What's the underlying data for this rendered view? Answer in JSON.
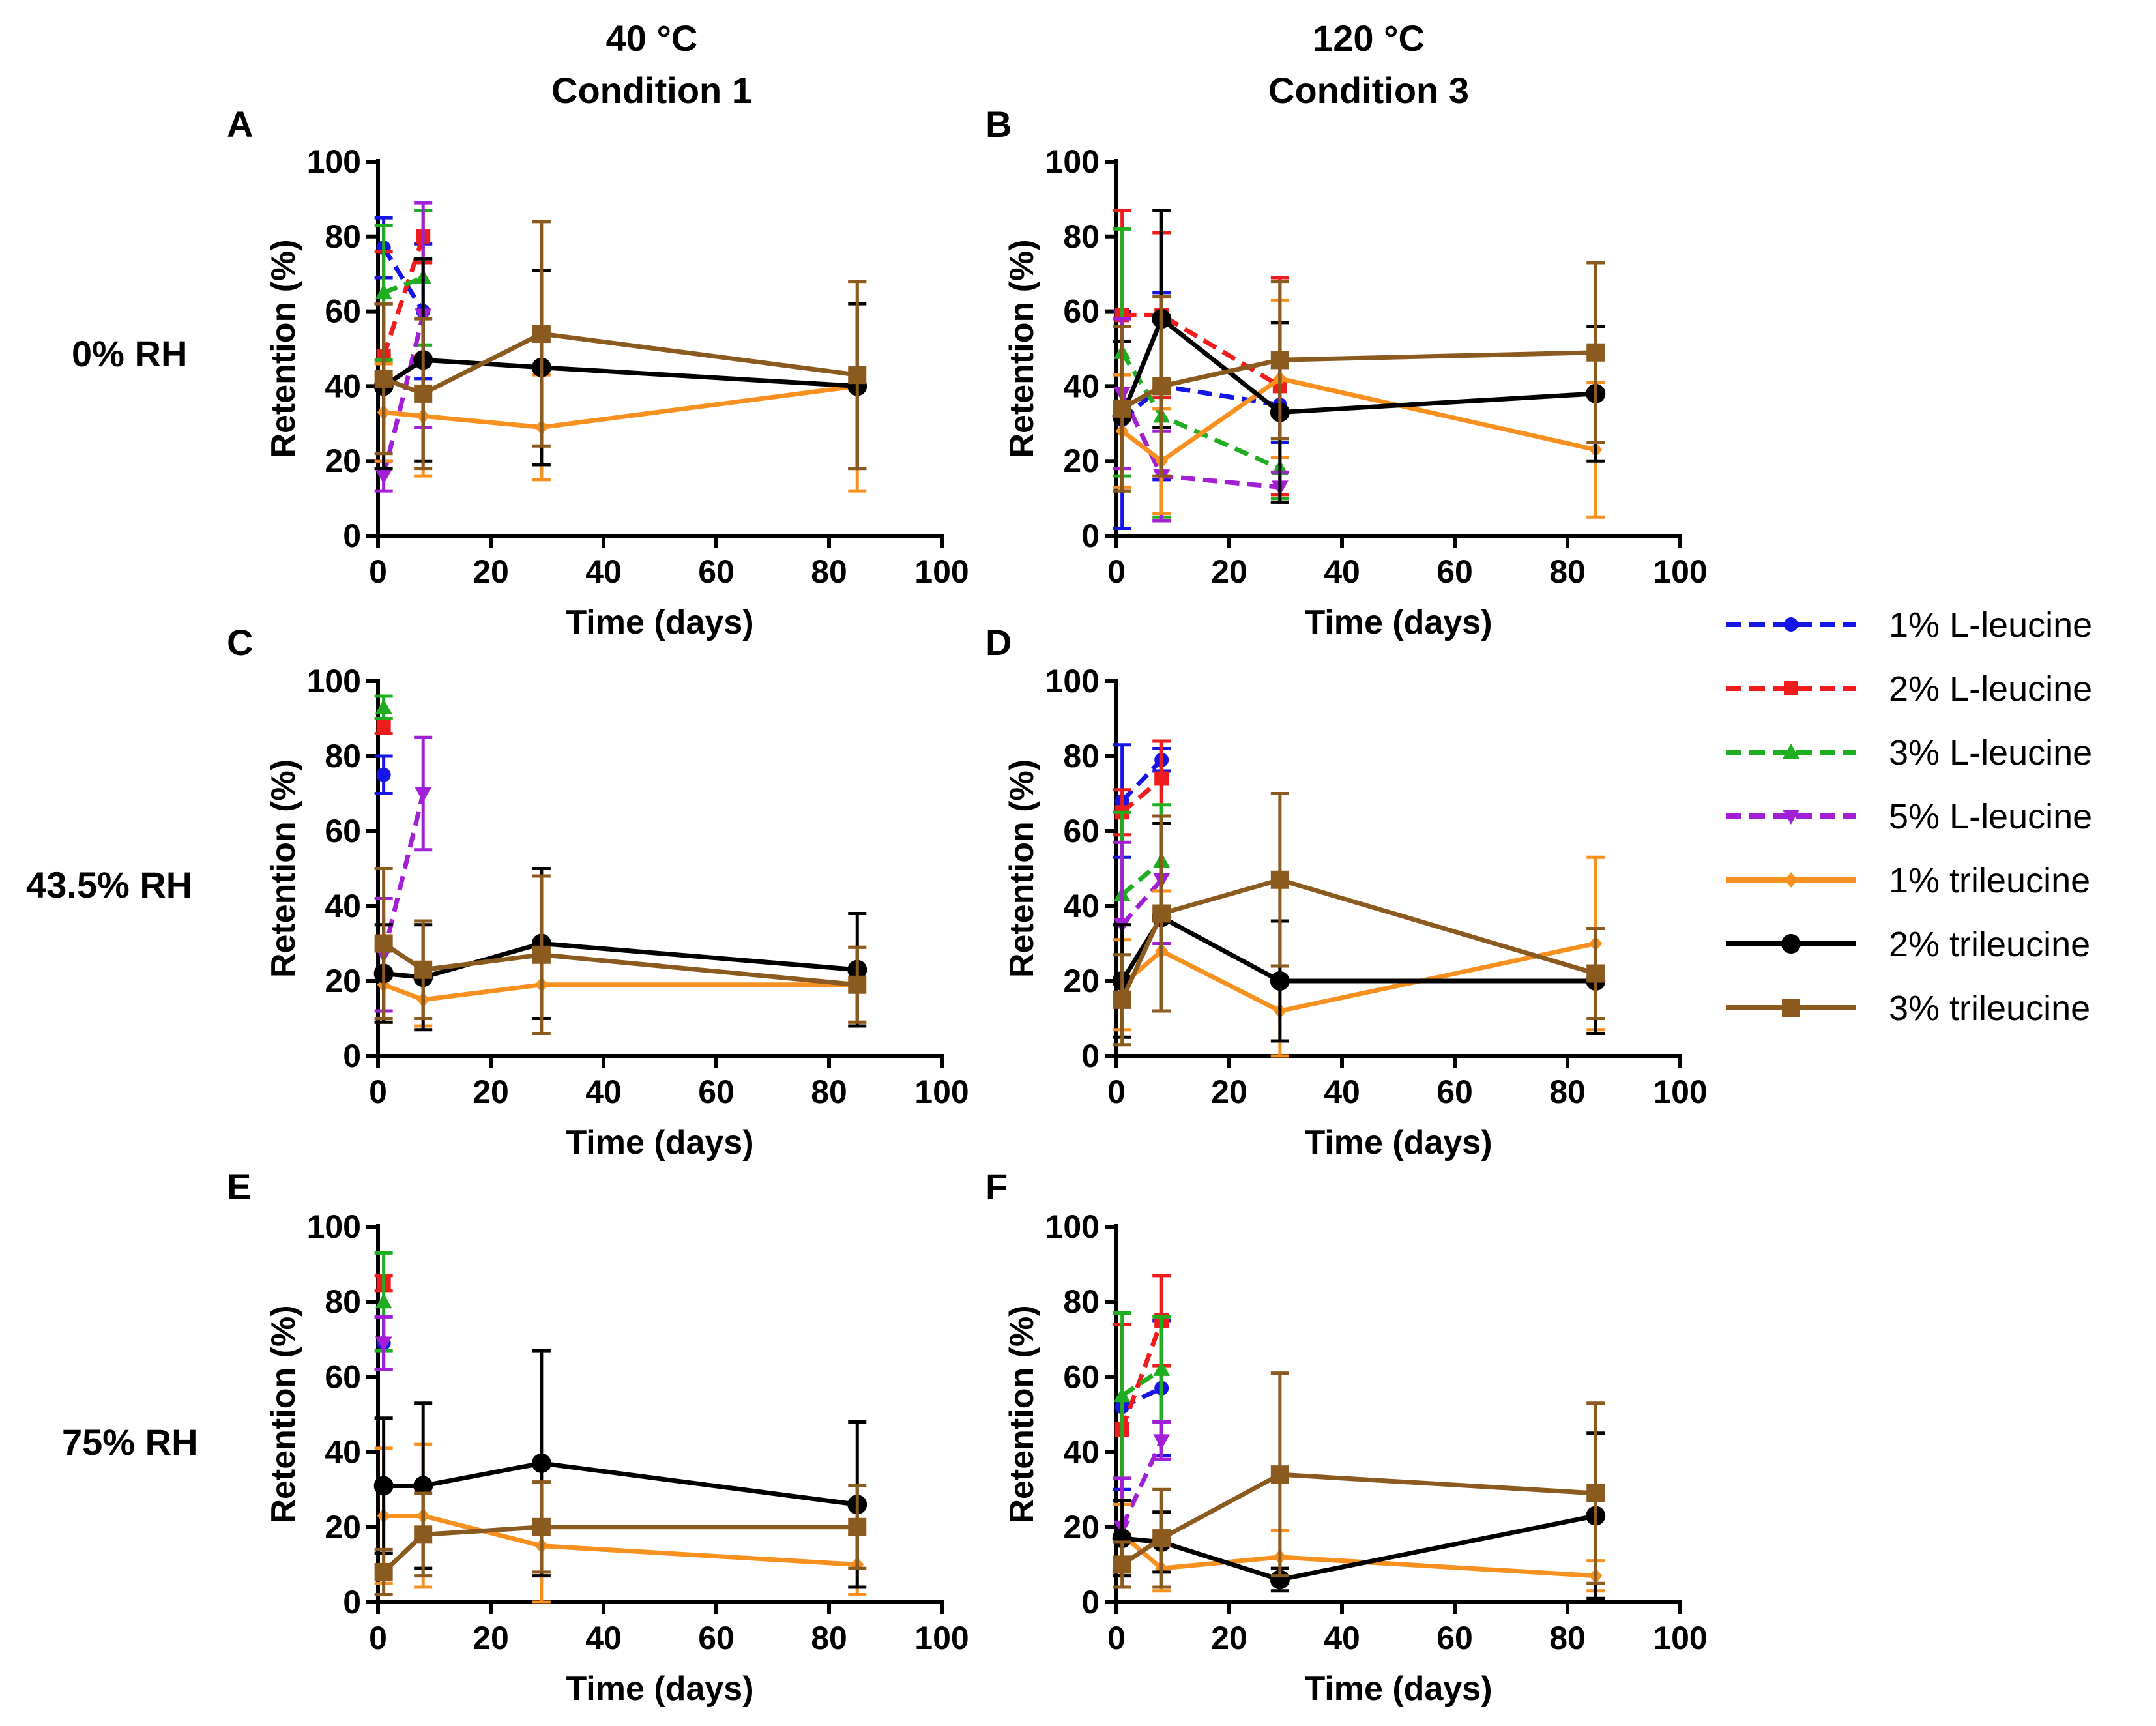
{
  "columns": [
    "40 °C",
    "120 °C"
  ],
  "column_conditions": [
    "Condition 1",
    "Condition 3"
  ],
  "rows": [
    "0% RH",
    "43.5% RH",
    "75% RH"
  ],
  "series_meta": [
    {
      "name": "1% L-leucine",
      "color": "#1515e6",
      "dash": true,
      "marker": "circle"
    },
    {
      "name": "2% L-leucine",
      "color": "#ee1c1c",
      "dash": true,
      "marker": "square"
    },
    {
      "name": "3% L-leucine",
      "color": "#1fae1f",
      "dash": true,
      "marker": "triangle-up"
    },
    {
      "name": "5% L-leucine",
      "color": "#a21fd6",
      "dash": true,
      "marker": "triangle-down"
    },
    {
      "name": "1% trileucine",
      "color": "#f7901e",
      "dash": false,
      "marker": "diamond"
    },
    {
      "name": "2% trileucine",
      "color": "#000000",
      "dash": false,
      "marker": "circle-big"
    },
    {
      "name": "3% trileucine",
      "color": "#8b5a1e",
      "dash": false,
      "marker": "square-big"
    }
  ],
  "chart_data": [
    {
      "panel": "A",
      "type": "line",
      "xlabel": "Time (days)",
      "ylabel": "Retention (%)",
      "xlim": [
        0,
        100
      ],
      "ylim": [
        0,
        100
      ],
      "xticks": [
        "0",
        "20",
        "40",
        "60",
        "80",
        "100"
      ],
      "yticks": [
        "0",
        "20",
        "40",
        "60",
        "80",
        "100"
      ],
      "series": [
        {
          "name": "1% L-leucine",
          "x": [
            1,
            8
          ],
          "y": [
            77,
            60
          ],
          "err": [
            8,
            18
          ]
        },
        {
          "name": "2% L-leucine",
          "x": [
            1,
            8
          ],
          "y": [
            48,
            80
          ],
          "err": [
            28,
            7
          ]
        },
        {
          "name": "3% L-leucine",
          "x": [
            1,
            8
          ],
          "y": [
            65,
            69
          ],
          "err": [
            18,
            18
          ]
        },
        {
          "name": "5% L-leucine",
          "x": [
            1,
            8
          ],
          "y": [
            16,
            59
          ],
          "err": [
            4,
            30
          ]
        },
        {
          "name": "1% trileucine",
          "x": [
            1,
            8,
            29,
            85
          ],
          "y": [
            33,
            32,
            29,
            40
          ],
          "err": [
            13,
            16,
            14,
            28
          ]
        },
        {
          "name": "2% trileucine",
          "x": [
            1,
            8,
            29,
            85
          ],
          "y": [
            40,
            47,
            45,
            40
          ],
          "err": [
            22,
            27,
            26,
            22
          ]
        },
        {
          "name": "3% trileucine",
          "x": [
            1,
            8,
            29,
            85
          ],
          "y": [
            42,
            38,
            54,
            43
          ],
          "err": [
            20,
            20,
            30,
            25
          ]
        }
      ]
    },
    {
      "panel": "B",
      "type": "line",
      "xlabel": "Time (days)",
      "ylabel": "Retention (%)",
      "xlim": [
        0,
        100
      ],
      "ylim": [
        0,
        100
      ],
      "xticks": [
        "0",
        "20",
        "40",
        "60",
        "80",
        "100"
      ],
      "yticks": [
        "0",
        "20",
        "40",
        "60",
        "80",
        "100"
      ],
      "series": [
        {
          "name": "1% L-leucine",
          "x": [
            1,
            8,
            29
          ],
          "y": [
            31,
            40,
            35
          ],
          "err": [
            29,
            25,
            10
          ]
        },
        {
          "name": "2% L-leucine",
          "x": [
            1,
            8,
            29
          ],
          "y": [
            59,
            59,
            40
          ],
          "err": [
            28,
            22,
            29
          ]
        },
        {
          "name": "3% L-leucine",
          "x": [
            1,
            8,
            29
          ],
          "y": [
            49,
            32,
            18
          ],
          "err": [
            33,
            27,
            8
          ]
        },
        {
          "name": "5% L-leucine",
          "x": [
            1,
            8,
            29
          ],
          "y": [
            38,
            16,
            13
          ],
          "err": [
            20,
            12,
            4
          ]
        },
        {
          "name": "1% trileucine",
          "x": [
            1,
            8,
            29,
            85
          ],
          "y": [
            28,
            20,
            42,
            23
          ],
          "err": [
            15,
            14,
            21,
            18
          ]
        },
        {
          "name": "2% trileucine",
          "x": [
            1,
            8,
            29,
            85
          ],
          "y": [
            32,
            58,
            33,
            38
          ],
          "err": [
            20,
            29,
            24,
            18
          ]
        },
        {
          "name": "3% trileucine",
          "x": [
            1,
            8,
            29,
            85
          ],
          "y": [
            34,
            40,
            47,
            49
          ],
          "err": [
            22,
            24,
            21,
            24
          ]
        }
      ]
    },
    {
      "panel": "C",
      "type": "line",
      "xlabel": "Time (days)",
      "ylabel": "Retention (%)",
      "xlim": [
        0,
        100
      ],
      "ylim": [
        0,
        100
      ],
      "xticks": [
        "0",
        "20",
        "40",
        "60",
        "80",
        "100"
      ],
      "yticks": [
        "0",
        "20",
        "40",
        "60",
        "80",
        "100"
      ],
      "series": [
        {
          "name": "1% L-leucine",
          "x": [
            1
          ],
          "y": [
            75
          ],
          "err": [
            5
          ]
        },
        {
          "name": "2% L-leucine",
          "x": [
            1
          ],
          "y": [
            88
          ],
          "err": [
            2
          ]
        },
        {
          "name": "3% L-leucine",
          "x": [
            1
          ],
          "y": [
            93
          ],
          "err": [
            3
          ]
        },
        {
          "name": "5% L-leucine",
          "x": [
            1,
            8
          ],
          "y": [
            27,
            70
          ],
          "err": [
            15,
            15
          ]
        },
        {
          "name": "1% trileucine",
          "x": [
            1,
            8,
            29,
            85
          ],
          "y": [
            19,
            15,
            19,
            19
          ],
          "err": [
            10,
            7,
            9,
            10
          ]
        },
        {
          "name": "2% trileucine",
          "x": [
            1,
            8,
            29,
            85
          ],
          "y": [
            22,
            21,
            30,
            23
          ],
          "err": [
            13,
            14,
            20,
            15
          ]
        },
        {
          "name": "3% trileucine",
          "x": [
            1,
            8,
            29,
            85
          ],
          "y": [
            30,
            23,
            27,
            19
          ],
          "err": [
            20,
            13,
            21,
            10
          ]
        }
      ]
    },
    {
      "panel": "D",
      "type": "line",
      "xlabel": "Time (days)",
      "ylabel": "Retention (%)",
      "xlim": [
        0,
        100
      ],
      "ylim": [
        0,
        100
      ],
      "xticks": [
        "0",
        "20",
        "40",
        "60",
        "80",
        "100"
      ],
      "yticks": [
        "0",
        "20",
        "40",
        "60",
        "80",
        "100"
      ],
      "series": [
        {
          "name": "1% L-leucine",
          "x": [
            1,
            8
          ],
          "y": [
            68,
            79
          ],
          "err": [
            15,
            3
          ]
        },
        {
          "name": "2% L-leucine",
          "x": [
            1,
            8
          ],
          "y": [
            65,
            74
          ],
          "err": [
            6,
            10
          ]
        },
        {
          "name": "3% L-leucine",
          "x": [
            1,
            8
          ],
          "y": [
            43,
            52
          ],
          "err": [
            22,
            15
          ]
        },
        {
          "name": "5% L-leucine",
          "x": [
            1,
            8
          ],
          "y": [
            35,
            47
          ],
          "err": [
            22,
            17
          ]
        },
        {
          "name": "1% trileucine",
          "x": [
            1,
            8,
            29,
            85
          ],
          "y": [
            19,
            28,
            12,
            30
          ],
          "err": [
            12,
            16,
            12,
            23
          ]
        },
        {
          "name": "2% trileucine",
          "x": [
            1,
            8,
            29,
            85
          ],
          "y": [
            20,
            37,
            20,
            20
          ],
          "err": [
            15,
            25,
            16,
            14
          ]
        },
        {
          "name": "3% trileucine",
          "x": [
            1,
            8,
            29,
            85
          ],
          "y": [
            15,
            38,
            47,
            22
          ],
          "err": [
            12,
            26,
            23,
            12
          ]
        }
      ]
    },
    {
      "panel": "E",
      "type": "line",
      "xlabel": "Time (days)",
      "ylabel": "Retention (%)",
      "xlim": [
        0,
        100
      ],
      "ylim": [
        0,
        100
      ],
      "xticks": [
        "0",
        "20",
        "40",
        "60",
        "80",
        "100"
      ],
      "yticks": [
        "0",
        "20",
        "40",
        "60",
        "80",
        "100"
      ],
      "series": [
        {
          "name": "1% L-leucine",
          "x": [
            1
          ],
          "y": [
            69
          ],
          "err": [
            7
          ]
        },
        {
          "name": "2% L-leucine",
          "x": [
            1
          ],
          "y": [
            85
          ],
          "err": [
            2
          ]
        },
        {
          "name": "3% L-leucine",
          "x": [
            1
          ],
          "y": [
            80
          ],
          "err": [
            13
          ]
        },
        {
          "name": "5% L-leucine",
          "x": [
            1
          ],
          "y": [
            69
          ],
          "err": [
            7
          ]
        },
        {
          "name": "1% trileucine",
          "x": [
            1,
            8,
            29,
            85
          ],
          "y": [
            23,
            23,
            15,
            10
          ],
          "err": [
            18,
            19,
            17,
            8
          ]
        },
        {
          "name": "2% trileucine",
          "x": [
            1,
            8,
            29,
            85
          ],
          "y": [
            31,
            31,
            37,
            26
          ],
          "err": [
            18,
            22,
            30,
            22
          ]
        },
        {
          "name": "3% trileucine",
          "x": [
            1,
            8,
            29,
            85
          ],
          "y": [
            8,
            18,
            20,
            20
          ],
          "err": [
            6,
            11,
            12,
            11
          ]
        }
      ]
    },
    {
      "panel": "F",
      "type": "line",
      "xlabel": "Time (days)",
      "ylabel": "Retention (%)",
      "xlim": [
        0,
        100
      ],
      "ylim": [
        0,
        100
      ],
      "xticks": [
        "0",
        "20",
        "40",
        "60",
        "80",
        "100"
      ],
      "yticks": [
        "0",
        "20",
        "40",
        "60",
        "80",
        "100"
      ],
      "series": [
        {
          "name": "1% L-leucine",
          "x": [
            1,
            8
          ],
          "y": [
            52,
            57
          ],
          "err": [
            22,
            18
          ]
        },
        {
          "name": "2% L-leucine",
          "x": [
            1,
            8
          ],
          "y": [
            46,
            75
          ],
          "err": [
            28,
            12
          ]
        },
        {
          "name": "3% L-leucine",
          "x": [
            1,
            8
          ],
          "y": [
            55,
            62
          ],
          "err": [
            22,
            14
          ]
        },
        {
          "name": "5% L-leucine",
          "x": [
            1,
            8
          ],
          "y": [
            20,
            43
          ],
          "err": [
            13,
            5
          ]
        },
        {
          "name": "1% trileucine",
          "x": [
            1,
            8,
            29,
            85
          ],
          "y": [
            18,
            9,
            12,
            7
          ],
          "err": [
            8,
            6,
            7,
            4
          ]
        },
        {
          "name": "2% trileucine",
          "x": [
            1,
            8,
            29,
            85
          ],
          "y": [
            17,
            16,
            6,
            23
          ],
          "err": [
            10,
            8,
            3,
            22
          ]
        },
        {
          "name": "3% trileucine",
          "x": [
            1,
            8,
            29,
            85
          ],
          "y": [
            10,
            17,
            34,
            29
          ],
          "err": [
            6,
            13,
            27,
            24
          ]
        }
      ]
    }
  ]
}
